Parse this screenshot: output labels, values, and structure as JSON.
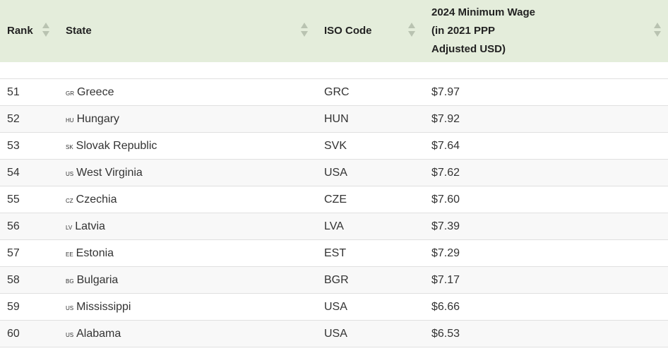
{
  "header": {
    "rank": "Rank",
    "state": "State",
    "iso": "ISO Code",
    "wage_lines": [
      "2024 Minimum Wage",
      "(in 2021 PPP",
      "Adjusted USD)"
    ]
  },
  "colors": {
    "header_bg": "#e4eddb"
  },
  "rows": [
    {
      "rank": "51",
      "cc": "GR",
      "state": "Greece",
      "iso": "GRC",
      "wage": "$7.97"
    },
    {
      "rank": "52",
      "cc": "HU",
      "state": "Hungary",
      "iso": "HUN",
      "wage": "$7.92"
    },
    {
      "rank": "53",
      "cc": "SK",
      "state": "Slovak Republic",
      "iso": "SVK",
      "wage": "$7.64"
    },
    {
      "rank": "54",
      "cc": "US",
      "state": "West Virginia",
      "iso": "USA",
      "wage": "$7.62"
    },
    {
      "rank": "55",
      "cc": "CZ",
      "state": "Czechia",
      "iso": "CZE",
      "wage": "$7.60"
    },
    {
      "rank": "56",
      "cc": "LV",
      "state": "Latvia",
      "iso": "LVA",
      "wage": "$7.39"
    },
    {
      "rank": "57",
      "cc": "EE",
      "state": "Estonia",
      "iso": "EST",
      "wage": "$7.29"
    },
    {
      "rank": "58",
      "cc": "BG",
      "state": "Bulgaria",
      "iso": "BGR",
      "wage": "$7.17"
    },
    {
      "rank": "59",
      "cc": "US",
      "state": "Mississippi",
      "iso": "USA",
      "wage": "$6.66"
    },
    {
      "rank": "60",
      "cc": "US",
      "state": "Alabama",
      "iso": "USA",
      "wage": "$6.53"
    }
  ]
}
